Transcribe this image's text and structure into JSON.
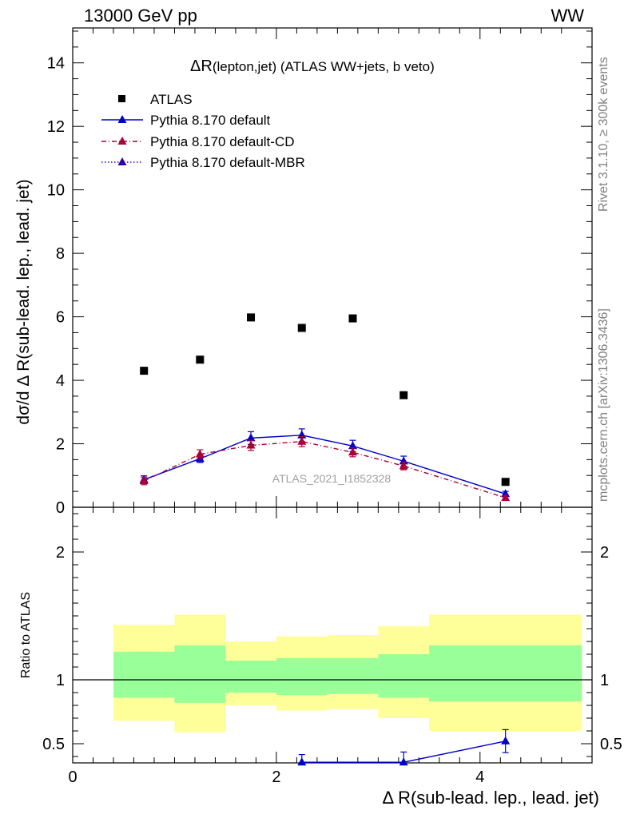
{
  "header": {
    "left": "13000 GeV pp",
    "right": "WW"
  },
  "side": {
    "rivet": "Rivet 3.1.10, ≥ 300k events",
    "mcplots": "mcplots.cern.ch [arXiv:1306.3436]"
  },
  "chart_data": [
    {
      "type": "scatter",
      "title": "ΔR(lepton,jet) (ATLAS WW+jets, b veto)",
      "title_main": "ΔR",
      "title_sub": "(lepton,jet)",
      "title_rest": " (ATLAS WW+jets, b veto)",
      "ylabel": "dσ/d Δ R(sub-lead. lep., lead. jet)",
      "xlim": [
        0,
        5.1
      ],
      "ylim": [
        0,
        15.1
      ],
      "yticks": [
        0,
        2,
        4,
        6,
        8,
        10,
        12,
        14
      ],
      "xticks": [
        0,
        2,
        4
      ],
      "watermark": "ATLAS_2021_I1852328",
      "legend_position": "top-left",
      "series": [
        {
          "name": "ATLAS",
          "color": "#000000",
          "marker": "square",
          "x": [
            0.7,
            1.25,
            1.75,
            2.25,
            2.75,
            3.25,
            4.25
          ],
          "y": [
            4.3,
            4.65,
            5.98,
            5.65,
            5.95,
            3.53,
            0.8
          ]
        },
        {
          "name": "Pythia 8.170 default",
          "color": "#0000cc",
          "marker": "triangle",
          "line": "solid",
          "x": [
            0.7,
            1.25,
            1.75,
            2.25,
            2.75,
            3.25,
            4.25
          ],
          "y": [
            0.87,
            1.53,
            2.18,
            2.27,
            1.93,
            1.45,
            0.42
          ],
          "err": [
            0.12,
            0.12,
            0.2,
            0.2,
            0.18,
            0.16,
            0.08
          ]
        },
        {
          "name": "Pythia 8.170 default-CD",
          "color": "#aa0033",
          "marker": "triangle",
          "line": "dashdot",
          "x": [
            0.7,
            1.25,
            1.75,
            2.25,
            2.75,
            3.25,
            4.25
          ],
          "y": [
            0.83,
            1.67,
            1.95,
            2.07,
            1.73,
            1.3,
            0.3
          ],
          "err": [
            0.12,
            0.14,
            0.16,
            0.16,
            0.14,
            0.12,
            0.06
          ]
        },
        {
          "name": "Pythia 8.170 default-MBR",
          "color": "#3300aa",
          "marker": "triangle",
          "line": "dotted",
          "x": [],
          "y": []
        }
      ]
    },
    {
      "type": "line",
      "ylabel": "Ratio to ATLAS",
      "xlabel": "Δ R(sub-lead. lep., lead. jet)",
      "xlim": [
        0,
        5.1
      ],
      "ylim": [
        0.35,
        2.35
      ],
      "yticks": [
        0.5,
        1,
        2
      ],
      "ytick_labels": [
        "0.5",
        "1",
        "2"
      ],
      "xticks": [
        0,
        2,
        4
      ],
      "reference_line": 1,
      "bands": [
        {
          "x": [
            0.4,
            1.0
          ],
          "inner": [
            0.86,
            1.22
          ],
          "outer": [
            0.68,
            1.43
          ]
        },
        {
          "x": [
            1.0,
            1.5
          ],
          "inner": [
            0.82,
            1.27
          ],
          "outer": [
            0.59,
            1.51
          ]
        },
        {
          "x": [
            1.5,
            2.0
          ],
          "inner": [
            0.9,
            1.15
          ],
          "outer": [
            0.8,
            1.3
          ]
        },
        {
          "x": [
            2.0,
            2.5
          ],
          "inner": [
            0.88,
            1.17
          ],
          "outer": [
            0.76,
            1.34
          ]
        },
        {
          "x": [
            2.5,
            3.0
          ],
          "inner": [
            0.89,
            1.17
          ],
          "outer": [
            0.77,
            1.35
          ]
        },
        {
          "x": [
            3.0,
            3.5
          ],
          "inner": [
            0.86,
            1.2
          ],
          "outer": [
            0.7,
            1.42
          ]
        },
        {
          "x": [
            3.5,
            5.0
          ],
          "inner": [
            0.83,
            1.27
          ],
          "outer": [
            0.6,
            1.51
          ]
        }
      ],
      "band_colors": {
        "inner": "#99ff99",
        "outer": "#ffff99"
      },
      "series": [
        {
          "name": "Pythia 8.170 default",
          "color": "#0000cc",
          "x": [
            2.25,
            3.25,
            4.25
          ],
          "y": [
            0.355,
            0.355,
            0.52
          ],
          "err": [
            0.06,
            0.08,
            0.09
          ]
        }
      ]
    }
  ]
}
